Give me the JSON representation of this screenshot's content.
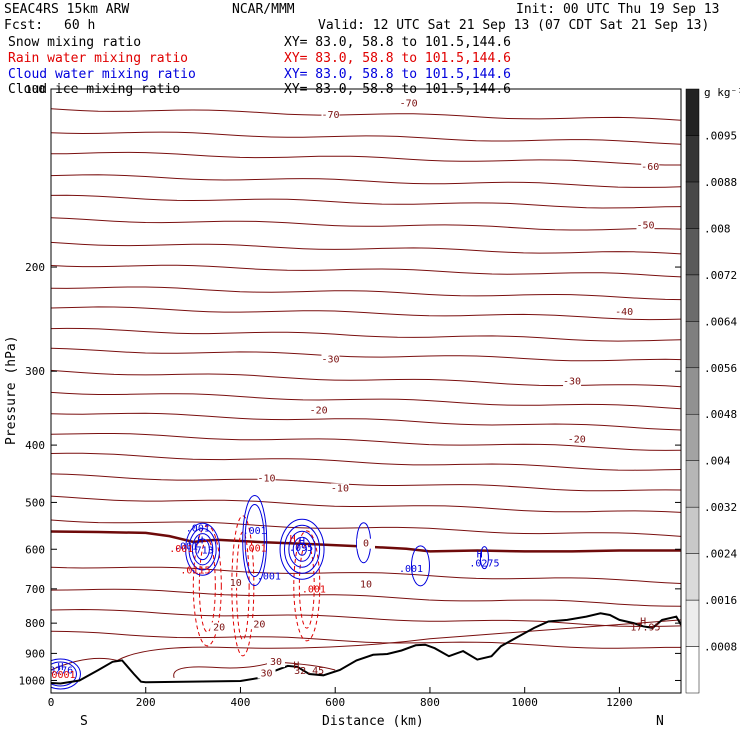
{
  "header": {
    "model": "SEAC4RS 15km ARW",
    "center": "NCAR/MMM",
    "init": "Init: 00 UTC Thu 19 Sep 13",
    "fcst_label": "Fcst:",
    "fcst_value": "60 h",
    "valid": "Valid: 12 UTC Sat 21 Sep 13 (07 CDT Sat 21 Sep 13)"
  },
  "fields": [
    {
      "name": "Snow mixing ratio",
      "xy": "XY=  83.0, 58.8 to 101.5,144.6",
      "color": "#000000"
    },
    {
      "name": "Rain water mixing ratio",
      "xy": "XY=  83.0, 58.8 to 101.5,144.6",
      "color": "#e00000"
    },
    {
      "name": "Cloud water mixing ratio",
      "xy": "XY=  83.0, 58.8 to 101.5,144.6",
      "color": "#0000dd"
    },
    {
      "name": "Cloud ice mixing ratio",
      "xy": "XY=  83.0, 58.8 to 101.5,144.6",
      "color": "#000000"
    }
  ],
  "colors": {
    "temperature": "#7a0f0f",
    "freezing_level": "#6e0a0a",
    "rain": "#e00000",
    "cloud": "#0000dd",
    "terrain": "#000000"
  },
  "chart_data": {
    "type": "line",
    "xlabel": "Distance (km)",
    "ylabel": "Pressure (hPa)",
    "xlim": [
      0,
      1330
    ],
    "ylim": [
      1050,
      100
    ],
    "y_scale": "log",
    "x_ticks": [
      0,
      200,
      400,
      600,
      800,
      1000,
      1200
    ],
    "y_ticks": [
      100,
      200,
      300,
      400,
      500,
      600,
      700,
      800,
      900,
      1000
    ],
    "x_endpoints": {
      "left": "S",
      "right": "N"
    },
    "colorbar": {
      "unit": "g kg⁻¹",
      "ticks": [
        ".0008",
        ".0016",
        ".0024",
        ".0032",
        ".004",
        ".0048",
        ".0056",
        ".0064",
        ".0072",
        ".008",
        ".0088",
        ".0095"
      ]
    },
    "temperature_isotherm_labels": [
      {
        "value": "-70",
        "x": 590,
        "p": 112
      },
      {
        "value": "-70",
        "x": 755,
        "p": 107
      },
      {
        "value": "-60",
        "x": 1265,
        "p": 137
      },
      {
        "value": "-50",
        "x": 1255,
        "p": 172
      },
      {
        "value": "-40",
        "x": 1210,
        "p": 241
      },
      {
        "value": "-30",
        "x": 590,
        "p": 290
      },
      {
        "value": "-30",
        "x": 1100,
        "p": 316
      },
      {
        "value": "-20",
        "x": 565,
        "p": 354
      },
      {
        "value": "-20",
        "x": 1110,
        "p": 396
      },
      {
        "value": "-10",
        "x": 455,
        "p": 461
      },
      {
        "value": "-10",
        "x": 610,
        "p": 479
      },
      {
        "value": "0",
        "x": 665,
        "p": 594
      },
      {
        "value": "10",
        "x": 390,
        "p": 692
      },
      {
        "value": "10",
        "x": 665,
        "p": 697
      },
      {
        "value": "20",
        "x": 355,
        "p": 823
      },
      {
        "value": "20",
        "x": 440,
        "p": 813
      },
      {
        "value": "30",
        "x": 475,
        "p": 942
      },
      {
        "value": "30",
        "x": 455,
        "p": 985
      }
    ],
    "freezing_level": {
      "x": [
        0,
        100,
        200,
        250,
        300,
        350,
        450,
        550,
        650,
        750,
        800,
        900,
        1000,
        1100,
        1200,
        1330
      ],
      "p": [
        560,
        561,
        563,
        570,
        583,
        578,
        584,
        588,
        593,
        599,
        605,
        603,
        605,
        605,
        603,
        603
      ]
    },
    "terrain": {
      "x": [
        0,
        20,
        60,
        100,
        130,
        150,
        175,
        190,
        200,
        240,
        320,
        400,
        440,
        470,
        500,
        520,
        545,
        575,
        610,
        645,
        680,
        710,
        740,
        770,
        790,
        810,
        840,
        870,
        900,
        930,
        950,
        990,
        1020,
        1050,
        1090,
        1130,
        1160,
        1180,
        1200,
        1230,
        1250,
        1270,
        1290,
        1320,
        1330
      ],
      "p": [
        1010,
        1012,
        1000,
        960,
        930,
        925,
        975,
        1005,
        1007,
        1006,
        1004,
        1002,
        990,
        965,
        945,
        948,
        975,
        980,
        960,
        925,
        905,
        902,
        890,
        872,
        870,
        882,
        910,
        892,
        922,
        910,
        875,
        840,
        815,
        795,
        790,
        780,
        770,
        775,
        790,
        800,
        810,
        815,
        790,
        780,
        805
      ]
    },
    "cloud_water_labels": [
      {
        "text": ".001",
        "x": 310,
        "p": 560
      },
      {
        "text": ".001",
        "x": 430,
        "p": 565
      },
      {
        "text": ".001",
        "x": 285,
        "p": 600
      },
      {
        "text": "H",
        "x": 315,
        "p": 587
      },
      {
        "text": ".713",
        "x": 318,
        "p": 610
      },
      {
        "text": ".001",
        "x": 460,
        "p": 675
      },
      {
        "text": "H",
        "x": 530,
        "p": 589
      },
      {
        "text": ".095",
        "x": 528,
        "p": 604
      },
      {
        "text": ".001",
        "x": 760,
        "p": 656
      },
      {
        "text": "H",
        "x": 905,
        "p": 620
      },
      {
        "text": ".0275",
        "x": 915,
        "p": 642
      },
      {
        "text": ".0276",
        "x": 15,
        "p": 973
      },
      {
        "text": "H",
        "x": 20,
        "p": 960
      }
    ],
    "rain_labels": [
      {
        "text": ".001",
        "x": 275,
        "p": 606
      },
      {
        "text": ".0115",
        "x": 305,
        "p": 659
      },
      {
        "text": ".001",
        "x": 430,
        "p": 605
      },
      {
        "text": ".001",
        "x": 555,
        "p": 710
      },
      {
        "text": "H",
        "x": 510,
        "p": 583
      },
      {
        "text": ".0001",
        "x": 20,
        "p": 990
      }
    ],
    "snow_labels": [
      {
        "text": "H",
        "x": 518,
        "p": 955
      },
      {
        "text": "32.45",
        "x": 545,
        "p": 975
      },
      {
        "text": "H",
        "x": 1250,
        "p": 805
      },
      {
        "text": "17.95",
        "x": 1255,
        "p": 824
      }
    ]
  }
}
